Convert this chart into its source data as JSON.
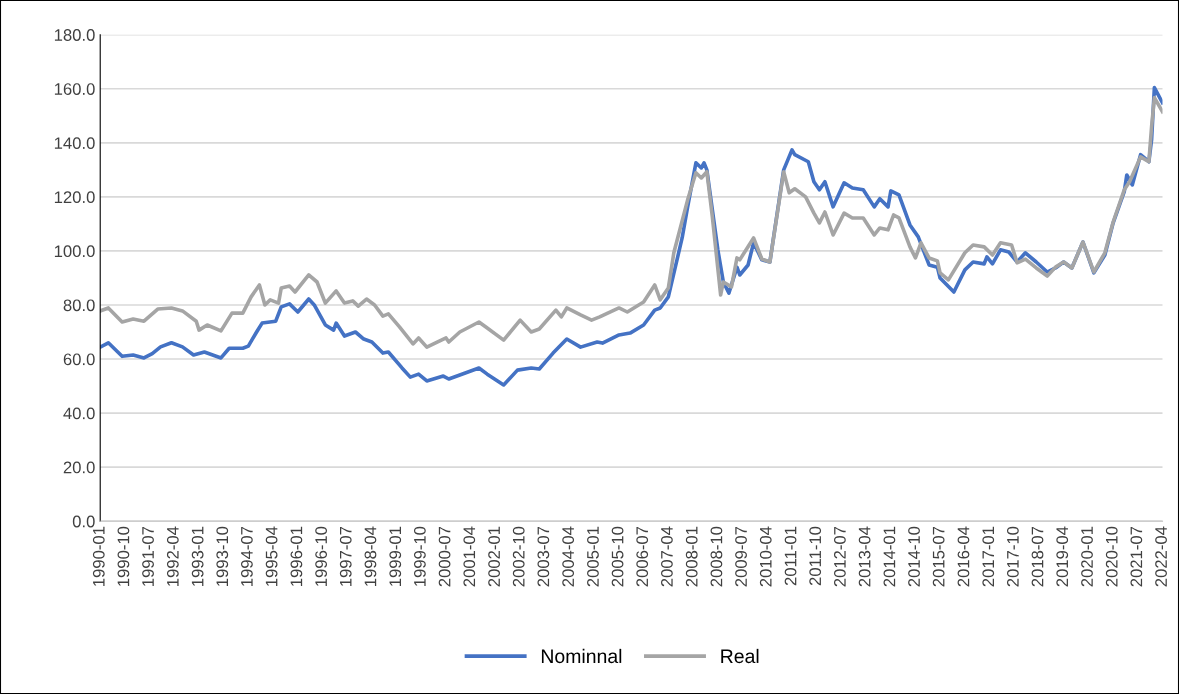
{
  "chart_data": {
    "type": "line",
    "series": [
      {
        "name": "Nominnal",
        "color": "#4472c4",
        "x": [
          "1990-01",
          "1990-04",
          "1990-09",
          "1991-01",
          "1991-05",
          "1991-08",
          "1991-11",
          "1992-03",
          "1992-07",
          "1992-11",
          "1993-03",
          "1993-09",
          "1993-12",
          "1994-05",
          "1994-07",
          "1994-10",
          "1994-12",
          "1995-05",
          "1995-07",
          "1995-10",
          "1996-01",
          "1996-05",
          "1996-07",
          "1996-11",
          "1997-02",
          "1997-03",
          "1997-06",
          "1997-10",
          "1998-01",
          "1998-04",
          "1998-08",
          "1998-10",
          "1999-03",
          "1999-06",
          "1999-09",
          "1999-12",
          "2000-06",
          "2000-08",
          "2000-12",
          "2001-07",
          "2001-10",
          "2002-04",
          "2002-09",
          "2003-02",
          "2003-05",
          "2003-10",
          "2004-03",
          "2004-08",
          "2005-02",
          "2005-04",
          "2005-10",
          "2006-02",
          "2006-07",
          "2006-11",
          "2007-01",
          "2007-04",
          "2007-09",
          "2007-11",
          "2008-02",
          "2008-04",
          "2008-05",
          "2008-06",
          "2008-10",
          "2008-12",
          "2009-02",
          "2009-05",
          "2009-06",
          "2009-09",
          "2009-11",
          "2010-02",
          "2010-05",
          "2010-10",
          "2011-01",
          "2011-02",
          "2011-07",
          "2011-09",
          "2011-11",
          "2012-01",
          "2012-04",
          "2012-08",
          "2012-11",
          "2013-03",
          "2013-07",
          "2013-09",
          "2013-12",
          "2014-01",
          "2014-04",
          "2014-08",
          "2014-11",
          "2015-03",
          "2015-06",
          "2015-07",
          "2015-12",
          "2016-04",
          "2016-07",
          "2016-11",
          "2016-12",
          "2017-02",
          "2017-05",
          "2017-08",
          "2017-11",
          "2018-02",
          "2018-06",
          "2018-10",
          "2019-01",
          "2019-04",
          "2019-07",
          "2019-11",
          "2020-03",
          "2020-07",
          "2020-10",
          "2021-02",
          "2021-03",
          "2021-05",
          "2021-08",
          "2021-11",
          "2021-12",
          "2022-01",
          "2022-02",
          "2022-04"
        ],
        "values": [
          64.4,
          66,
          61,
          61.5,
          60.4,
          62,
          64.5,
          66,
          64.5,
          61.5,
          62.6,
          60.4,
          64,
          64,
          64.8,
          70,
          73.3,
          74,
          79.3,
          80.4,
          77.4,
          82.2,
          80,
          72.6,
          70.7,
          73.3,
          68.5,
          70,
          67.4,
          66.3,
          62.2,
          62.6,
          56.7,
          53.3,
          54.4,
          51.9,
          53.7,
          52.6,
          54.1,
          56.7,
          54.4,
          50.4,
          55.9,
          56.7,
          56.3,
          62.2,
          67.4,
          64.4,
          66.3,
          65.9,
          68.9,
          69.6,
          72.6,
          78.1,
          78.9,
          83,
          104.8,
          116.3,
          132.6,
          130.7,
          132.6,
          130,
          100.4,
          88.5,
          84.4,
          94,
          91.1,
          94.8,
          103,
          96.7,
          95.9,
          130,
          137.4,
          135.6,
          133,
          125.6,
          122.6,
          125.6,
          116.3,
          125.2,
          123.3,
          122.6,
          116.3,
          119.3,
          116.3,
          122.2,
          120.7,
          109.6,
          105.2,
          94.8,
          94,
          90,
          84.8,
          93,
          95.9,
          95.2,
          97.8,
          95.2,
          100.4,
          99.6,
          95.9,
          99.3,
          95.9,
          92.2,
          93.7,
          95.9,
          93.7,
          103.3,
          91.9,
          98.5,
          110.4,
          121.9,
          128.1,
          124.4,
          135.6,
          133,
          141.1,
          160.4,
          158.5,
          154.8
        ]
      },
      {
        "name": "Real",
        "color": "#a5a5a5",
        "x": [
          "1990-01",
          "1990-04",
          "1990-09",
          "1991-01",
          "1991-05",
          "1991-10",
          "1992-03",
          "1992-07",
          "1992-12",
          "1993-01",
          "1993-04",
          "1993-09",
          "1994-01",
          "1994-05",
          "1994-08",
          "1994-11",
          "1995-01",
          "1995-03",
          "1995-06",
          "1995-07",
          "1995-10",
          "1995-12",
          "1996-05",
          "1996-08",
          "1996-11",
          "1997-03",
          "1997-06",
          "1997-09",
          "1997-11",
          "1998-02",
          "1998-05",
          "1998-08",
          "1998-10",
          "1999-02",
          "1999-07",
          "1999-09",
          "1999-12",
          "2000-07",
          "2000-08",
          "2000-12",
          "2001-07",
          "2001-10",
          "2002-04",
          "2002-10",
          "2003-02",
          "2003-05",
          "2003-11",
          "2004-01",
          "2004-03",
          "2004-08",
          "2004-12",
          "2005-03",
          "2005-10",
          "2006-01",
          "2006-07",
          "2006-11",
          "2007-01",
          "2007-04",
          "2007-06",
          "2007-11",
          "2008-02",
          "2008-04",
          "2008-06",
          "2008-08",
          "2008-11",
          "2008-12",
          "2009-03",
          "2009-05",
          "2009-06",
          "2009-11",
          "2010-02",
          "2010-05",
          "2010-10",
          "2010-12",
          "2011-02",
          "2011-06",
          "2011-09",
          "2011-11",
          "2012-01",
          "2012-04",
          "2012-08",
          "2012-11",
          "2013-03",
          "2013-07",
          "2013-09",
          "2013-12",
          "2014-02",
          "2014-04",
          "2014-08",
          "2014-10",
          "2014-12",
          "2015-03",
          "2015-06",
          "2015-07",
          "2015-10",
          "2016-04",
          "2016-07",
          "2016-11",
          "2017-02",
          "2017-05",
          "2017-09",
          "2017-11",
          "2018-02",
          "2018-06",
          "2018-10",
          "2019-01",
          "2019-04",
          "2019-07",
          "2019-11",
          "2020-03",
          "2020-07",
          "2020-10",
          "2021-02",
          "2021-04",
          "2021-08",
          "2021-11",
          "2021-12",
          "2022-01",
          "2022-04"
        ],
        "values": [
          77.8,
          78.9,
          73.7,
          74.8,
          74,
          78.5,
          78.9,
          77.8,
          74,
          70.7,
          72.6,
          70.4,
          77,
          77,
          83,
          87.4,
          80,
          81.9,
          80.7,
          86.3,
          87,
          84.8,
          91.1,
          88.5,
          80.7,
          85.2,
          80.7,
          81.5,
          79.6,
          82.2,
          80,
          75.9,
          76.7,
          71.9,
          65.6,
          67.8,
          64.4,
          67.8,
          66.3,
          70,
          73.7,
          71.5,
          67,
          74.4,
          70,
          71.1,
          78.1,
          75.6,
          78.9,
          76.3,
          74.4,
          75.6,
          78.9,
          77.4,
          81.1,
          87.4,
          81.9,
          86.3,
          99.3,
          118.9,
          128.9,
          127,
          129.3,
          112.6,
          83.7,
          88.5,
          86.7,
          97.4,
          96.7,
          104.8,
          97,
          95.9,
          129.3,
          121.5,
          123,
          120,
          114,
          110.4,
          114.4,
          105.9,
          114,
          112.2,
          112.2,
          105.9,
          108.5,
          107.8,
          113.3,
          112.2,
          101.5,
          97.4,
          103,
          97.4,
          96.3,
          91.9,
          89.3,
          99.3,
          102.2,
          101.5,
          98.5,
          103,
          102.2,
          95.6,
          97,
          93.7,
          90.7,
          94,
          95.9,
          93.7,
          103.3,
          92.2,
          99.3,
          110.7,
          122.6,
          125.6,
          134.8,
          133,
          145.9,
          156.7,
          151.5
        ]
      }
    ],
    "xlim": [
      "1990-01",
      "2022-04"
    ],
    "xticks": [
      "1990-01",
      "1990-10",
      "1991-07",
      "1992-04",
      "1993-01",
      "1993-10",
      "1994-07",
      "1995-04",
      "1996-01",
      "1996-10",
      "1997-07",
      "1998-04",
      "1999-01",
      "1999-10",
      "2000-07",
      "2001-04",
      "2002-01",
      "2002-10",
      "2003-07",
      "2004-04",
      "2005-01",
      "2005-10",
      "2006-07",
      "2007-04",
      "2008-01",
      "2008-10",
      "2009-07",
      "2010-04",
      "2011-01",
      "2011-10",
      "2012-07",
      "2013-04",
      "2014-01",
      "2014-10",
      "2015-07",
      "2016-04",
      "2017-01",
      "2017-10",
      "2018-07",
      "2019-04",
      "2020-01",
      "2020-10",
      "2021-07",
      "2022-04"
    ],
    "ylim": [
      0,
      180
    ],
    "yticks": [
      {
        "value": 0,
        "label": "0.0"
      },
      {
        "value": 20,
        "label": "20.0"
      },
      {
        "value": 40,
        "label": "40.0"
      },
      {
        "value": 60,
        "label": "60.0"
      },
      {
        "value": 80,
        "label": "80.0"
      },
      {
        "value": 100,
        "label": "100.0"
      },
      {
        "value": 120,
        "label": "120.0"
      },
      {
        "value": 140,
        "label": "140.0"
      },
      {
        "value": 160,
        "label": "160.0"
      },
      {
        "value": 180,
        "label": "180.0"
      }
    ],
    "grid": "y",
    "legend": "bottom",
    "marker": "none",
    "line_style": "solid"
  }
}
